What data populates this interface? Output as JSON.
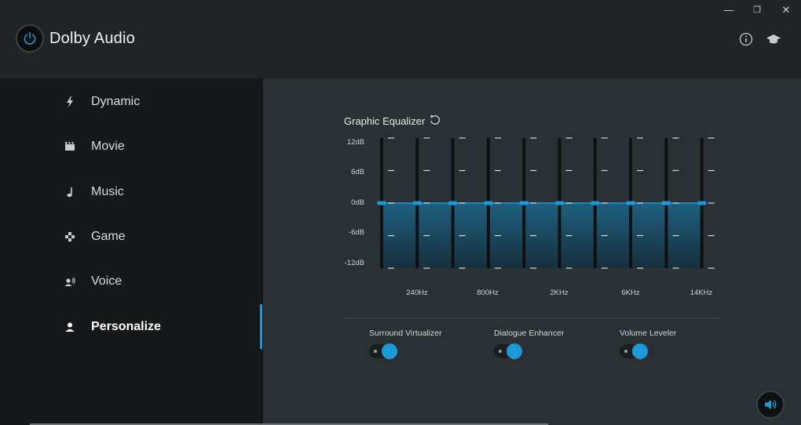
{
  "window": {
    "minimize_glyph": "—",
    "restore_glyph": "❐",
    "close_glyph": "✕"
  },
  "header": {
    "app_title": "Dolby Audio"
  },
  "sidebar": {
    "items": [
      {
        "label": "Dynamic",
        "icon": "lightning-icon",
        "active": false
      },
      {
        "label": "Movie",
        "icon": "clapper-icon",
        "active": false
      },
      {
        "label": "Music",
        "icon": "music-note-icon",
        "active": false
      },
      {
        "label": "Game",
        "icon": "gamepad-icon",
        "active": false
      },
      {
        "label": "Voice",
        "icon": "voice-icon",
        "active": false
      },
      {
        "label": "Personalize",
        "icon": "person-icon",
        "active": true
      }
    ]
  },
  "equalizer": {
    "title": "Graphic Equalizer",
    "db_labels": [
      "12dB",
      "6dB",
      "0dB",
      "-6dB",
      "-12dB"
    ],
    "db_range": [
      -12,
      12
    ],
    "freq_labels": [
      "240Hz",
      "800Hz",
      "2KHz",
      "6KHz",
      "14KHz"
    ],
    "band_values_db": [
      0,
      0,
      0,
      0,
      0,
      0,
      0,
      0,
      0,
      0
    ]
  },
  "toggles": [
    {
      "label": "Surround Virtualizer",
      "on": true
    },
    {
      "label": "Dialogue Enhancer",
      "on": true
    },
    {
      "label": "Volume Leveler",
      "on": true
    }
  ],
  "colors": {
    "accent": "#1e98d6",
    "fill": "#1c4d66",
    "sidebar_bg": "#161819",
    "main_bg": "#2a3134"
  }
}
